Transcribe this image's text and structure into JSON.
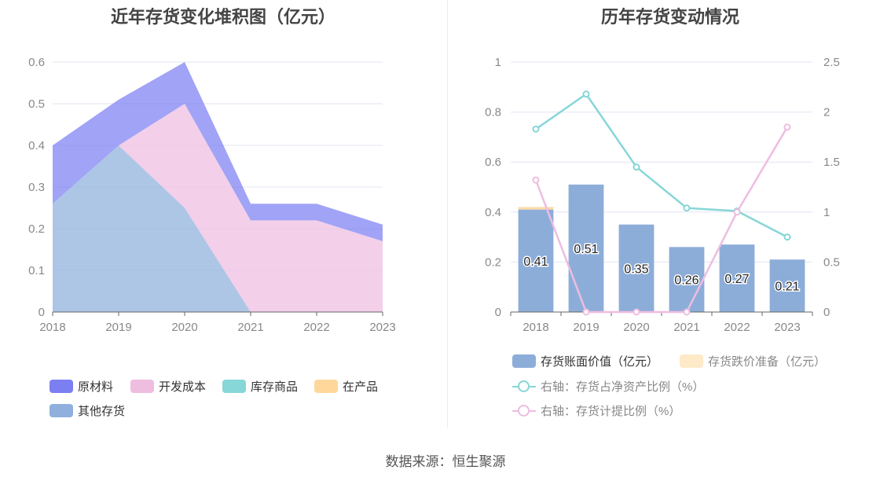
{
  "source": "数据来源：恒生聚源",
  "chart_data": [
    {
      "type": "area",
      "title": "近年存货变化堆积图（亿元）",
      "x": [
        "2018",
        "2019",
        "2020",
        "2021",
        "2022",
        "2023"
      ],
      "ylim": [
        0,
        0.6
      ],
      "yticks": [
        "0",
        "0.1",
        "0.2",
        "0.3",
        "0.4",
        "0.5",
        "0.6"
      ],
      "stacked": true,
      "grid": true,
      "legend_position": "bottom",
      "series": [
        {
          "name": "原材料",
          "color": "#7b7ff2",
          "values": [
            0.14,
            0.11,
            0.1,
            0.04,
            0.04,
            0.04
          ]
        },
        {
          "name": "开发成本",
          "color": "#eebde0",
          "values": [
            0.0,
            0.0,
            0.25,
            0.22,
            0.22,
            0.17
          ]
        },
        {
          "name": "库存商品",
          "color": "#87d6d8",
          "values": [
            0.0,
            0.0,
            0.0,
            0.0,
            0.0,
            0.0
          ]
        },
        {
          "name": "在产品",
          "color": "#fed79a",
          "values": [
            0.0,
            0.0,
            0.0,
            0.0,
            0.0,
            0.0
          ]
        },
        {
          "name": "其他存货",
          "color": "#8fb0dd",
          "values": [
            0.26,
            0.4,
            0.25,
            0.0,
            0.0,
            0.0
          ]
        }
      ]
    },
    {
      "type": "bar",
      "title": "历年存货变动情况",
      "categories": [
        "2018",
        "2019",
        "2020",
        "2021",
        "2022",
        "2023"
      ],
      "ylim": [
        0,
        1
      ],
      "yticks": [
        "0",
        "0.2",
        "0.4",
        "0.6",
        "0.8",
        "1"
      ],
      "y2lim": [
        0,
        2.5
      ],
      "y2ticks": [
        "0",
        "0.5",
        "1",
        "1.5",
        "2",
        "2.5"
      ],
      "grid": true,
      "legend_position": "bottom",
      "series": [
        {
          "name": "存货账面价值（亿元）",
          "kind": "bar",
          "color": "#8dadd9",
          "values": [
            0.41,
            0.51,
            0.35,
            0.26,
            0.27,
            0.21
          ],
          "labels": [
            "0.41",
            "0.51",
            "0.35",
            "0.26",
            "0.27",
            "0.21"
          ]
        },
        {
          "name": "存货跌价准备（亿元）",
          "kind": "bar",
          "color": "#fee9c8",
          "values": [
            0.01,
            0.0,
            0.0,
            0.0,
            0.0,
            0.0
          ]
        },
        {
          "name": "右轴：存货占净资产比例（%）",
          "kind": "line",
          "axis": "right",
          "color": "#87d6d8",
          "values": [
            1.83,
            2.18,
            1.45,
            1.04,
            1.01,
            0.75
          ]
        },
        {
          "name": "右轴：存货计提比例（%）",
          "kind": "line",
          "axis": "right",
          "color": "#eebde0",
          "values": [
            1.32,
            0.0,
            0.0,
            0.0,
            1.0,
            1.85
          ]
        }
      ]
    }
  ]
}
